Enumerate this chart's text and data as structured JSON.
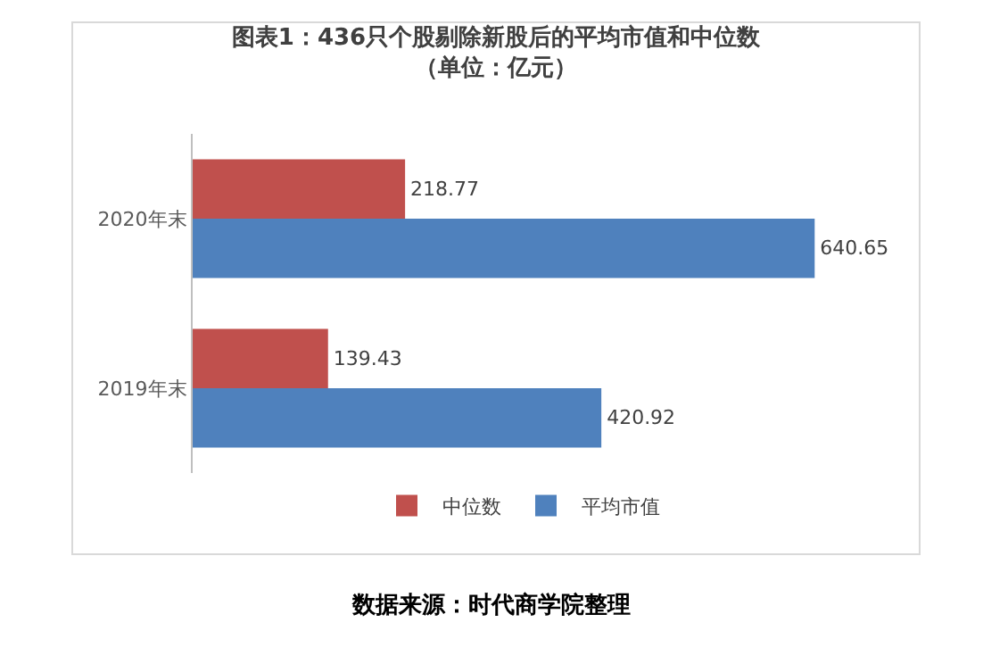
{
  "chart_data": {
    "type": "bar",
    "orientation": "horizontal",
    "title": "图表1：436只个股剔除新股后的平均市值和中位数",
    "subtitle": "（单位：亿元）",
    "categories": [
      "2020年末",
      "2019年末"
    ],
    "series": [
      {
        "name": "中位数",
        "color": "#c0504d",
        "values": [
          218.77,
          139.43
        ]
      },
      {
        "name": "平均市值",
        "color": "#4f81bd",
        "values": [
          640.65,
          420.92
        ]
      }
    ],
    "data_labels": true,
    "legend": "bottom",
    "grid": false,
    "annotations": [
      "数据来源：时代商学院整理"
    ]
  }
}
